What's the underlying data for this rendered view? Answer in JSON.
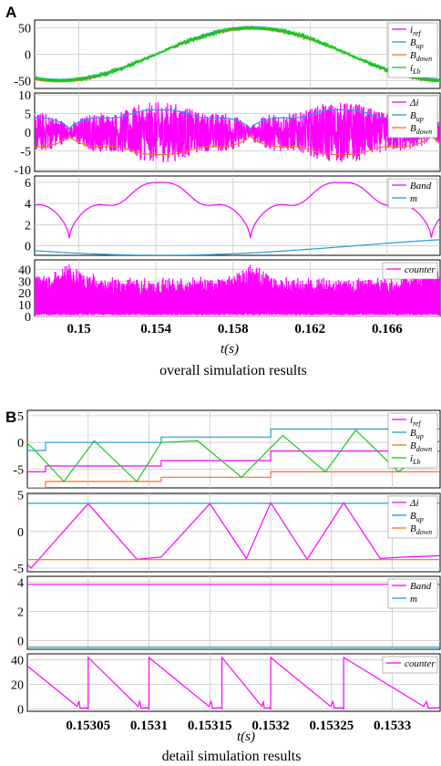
{
  "figure": {
    "panel_labels": [
      "A",
      "B"
    ],
    "captions": [
      "overall simulation results",
      "detail simulation results"
    ],
    "xlabel": "t(s)"
  },
  "colors": {
    "magenta": "#ff00ff",
    "cyan": "#1e9fd8",
    "orange": "#ff6a2a",
    "green": "#19c81e"
  },
  "chart_data": [
    {
      "panel": "A",
      "type": "line",
      "x_ticks": [
        0.15,
        0.154,
        0.158,
        0.162,
        0.166
      ],
      "x_tick_labels": [
        "0.15",
        "0.154",
        "0.158",
        "0.162",
        "0.166"
      ],
      "xlim": [
        0.1477,
        0.1688
      ],
      "xlabel": "t(s)",
      "subplots": [
        {
          "ylim": [
            -65,
            65
          ],
          "y_ticks": [
            -50,
            0,
            50
          ],
          "legend": [
            {
              "label": "i",
              "sub": "ref",
              "color": "#ff00ff"
            },
            {
              "label": "B",
              "sub": "up",
              "color": "#1e9fd8"
            },
            {
              "label": "B",
              "sub": "down",
              "color": "#ff6a2a"
            },
            {
              "label": "i",
              "sub": "Lb",
              "color": "#19c81e"
            }
          ],
          "series": [
            {
              "name": "iref",
              "kind": "sine",
              "amplitude": 50,
              "period": 0.02,
              "peak_at": 0.159,
              "offset": 0,
              "color": "#ff00ff"
            },
            {
              "name": "Bup",
              "kind": "sine",
              "amplitude": 50,
              "period": 0.02,
              "peak_at": 0.159,
              "offset": 4,
              "color": "#1e9fd8"
            },
            {
              "name": "Bdown",
              "kind": "sine",
              "amplitude": 50,
              "period": 0.02,
              "peak_at": 0.159,
              "offset": -4,
              "color": "#ff6a2a"
            },
            {
              "name": "iLb",
              "kind": "sine_ripple",
              "amplitude": 50,
              "period": 0.02,
              "peak_at": 0.159,
              "ripple": 6,
              "color": "#19c81e"
            }
          ]
        },
        {
          "ylim": [
            -10.5,
            10.5
          ],
          "y_ticks": [
            -10,
            -5,
            0,
            5,
            10
          ],
          "legend": [
            {
              "label": "Δi",
              "sub": "",
              "color": "#ff00ff"
            },
            {
              "label": "B",
              "sub": "up",
              "color": "#1e9fd8"
            },
            {
              "label": "B",
              "sub": "down",
              "color": "#ff6a2a"
            }
          ],
          "series": [
            {
              "name": "Δi",
              "kind": "band_fill",
              "color": "#ff00ff"
            },
            {
              "name": "Bup",
              "kind": "band",
              "sign": 1,
              "color": "#1e9fd8"
            },
            {
              "name": "Bdown",
              "kind": "band",
              "sign": -1,
              "color": "#ff6a2a"
            }
          ]
        },
        {
          "ylim": [
            -0.9,
            6.6
          ],
          "y_ticks": [
            0,
            2,
            4,
            6
          ],
          "legend": [
            {
              "label": "Band",
              "sub": "",
              "color": "#ff00ff"
            },
            {
              "label": "m",
              "sub": "",
              "color": "#1e9fd8"
            }
          ],
          "series": [
            {
              "name": "Band",
              "kind": "band",
              "sign": 1,
              "color": "#ff00ff"
            },
            {
              "name": "m",
              "kind": "slow_sine",
              "amplitude": 0.9,
              "period": 0.04,
              "trough_at": 0.1543,
              "color": "#1e9fd8"
            }
          ]
        },
        {
          "ylim": [
            0,
            48
          ],
          "y_ticks": [
            0,
            10,
            20,
            30,
            40
          ],
          "legend": [
            {
              "label": "counter",
              "sub": "",
              "color": "#ff00ff"
            }
          ],
          "series": [
            {
              "name": "counter",
              "kind": "counter_fill",
              "max": 42,
              "color": "#ff00ff"
            }
          ]
        }
      ]
    },
    {
      "panel": "B",
      "type": "line",
      "x_ticks": [
        0.15305,
        0.1531,
        0.15315,
        0.1532,
        0.15325,
        0.1533
      ],
      "x_tick_labels": [
        "0.15305",
        "0.1531",
        "0.15315",
        "0.1532",
        "0.15325",
        "0.1533"
      ],
      "xlim": [
        0.153,
        0.15334
      ],
      "xlabel": "t(s)",
      "subplots": [
        {
          "ylim": [
            -8.5,
            6
          ],
          "y_ticks": [
            -5,
            0,
            5
          ],
          "legend": [
            {
              "label": "i",
              "sub": "ref",
              "color": "#ff00ff"
            },
            {
              "label": "B",
              "sub": "up",
              "color": "#1e9fd8"
            },
            {
              "label": "B",
              "sub": "down",
              "color": "#ff6a2a"
            },
            {
              "label": "i",
              "sub": "Lb",
              "color": "#19c81e"
            }
          ],
          "series": [
            {
              "name": "iref",
              "kind": "steps",
              "x": [
                0.153,
                0.153015,
                0.15311,
                0.1532,
                0.15334
              ],
              "y": [
                -5.5,
                -4.4,
                -3.4,
                -1.6,
                -1.6
              ],
              "color": "#ff00ff"
            },
            {
              "name": "Bup",
              "kind": "steps",
              "x": [
                0.153,
                0.153015,
                0.15311,
                0.1532,
                0.15334
              ],
              "y": [
                -1.5,
                0,
                1,
                2.5,
                2.5
              ],
              "color": "#1e9fd8"
            },
            {
              "name": "Bdown",
              "kind": "steps",
              "x": [
                0.153,
                0.153015,
                0.15311,
                0.1532,
                0.15334
              ],
              "y": [
                -8.5,
                -7.3,
                -6.5,
                -5.5,
                -5.5
              ],
              "color": "#ff6a2a"
            },
            {
              "name": "iLb",
              "kind": "polyline",
              "x": [
                0.153,
                0.153005,
                0.15303,
                0.153055,
                0.15309,
                0.15311,
                0.15314,
                0.153176,
                0.15321,
                0.153245,
                0.15327,
                0.153305,
                0.15334
              ],
              "y": [
                -0.2,
                -1.2,
                -7.3,
                0.3,
                -7.3,
                0,
                0.3,
                -6.5,
                1.3,
                -5.5,
                2.3,
                -5.5,
                0.5
              ],
              "color": "#19c81e"
            }
          ]
        },
        {
          "ylim": [
            -5.5,
            5.2
          ],
          "y_ticks": [
            -5,
            0,
            5
          ],
          "legend": [
            {
              "label": "Δi",
              "sub": "",
              "color": "#ff00ff"
            },
            {
              "label": "B",
              "sub": "up",
              "color": "#1e9fd8"
            },
            {
              "label": "B",
              "sub": "down",
              "color": "#ff6a2a"
            }
          ],
          "series": [
            {
              "name": "Δi",
              "kind": "polyline",
              "x": [
                0.153,
                0.153003,
                0.15305,
                0.15309,
                0.15311,
                0.15315,
                0.15318,
                0.1532,
                0.15323,
                0.15326,
                0.15329,
                0.15331,
                0.15334
              ],
              "y": [
                -4.5,
                -5,
                3.8,
                -3.8,
                -3.5,
                3.8,
                -3.7,
                3.9,
                -3.8,
                3.9,
                -3.7,
                -3.5,
                -3.3
              ],
              "color": "#ff00ff"
            },
            {
              "name": "Bup",
              "kind": "steps",
              "x": [
                0.153,
                0.15334
              ],
              "y": [
                3.85,
                3.85
              ],
              "color": "#1e9fd8"
            },
            {
              "name": "Bdown",
              "kind": "steps",
              "x": [
                0.153,
                0.15334
              ],
              "y": [
                -3.85,
                -3.85
              ],
              "color": "#ff6a2a"
            }
          ]
        },
        {
          "ylim": [
            -0.6,
            4.4
          ],
          "y_ticks": [
            0,
            2,
            4
          ],
          "legend": [
            {
              "label": "Band",
              "sub": "",
              "color": "#ff00ff"
            },
            {
              "label": "m",
              "sub": "",
              "color": "#1e9fd8"
            }
          ],
          "series": [
            {
              "name": "Band",
              "kind": "steps",
              "x": [
                0.153,
                0.15334
              ],
              "y": [
                3.85,
                3.85
              ],
              "color": "#ff00ff"
            },
            {
              "name": "m",
              "kind": "steps",
              "x": [
                0.153,
                0.15334
              ],
              "y": [
                -0.45,
                -0.45
              ],
              "color": "#1e9fd8"
            }
          ]
        },
        {
          "ylim": [
            -2,
            45
          ],
          "y_ticks": [
            0,
            20,
            40
          ],
          "legend": [
            {
              "label": "counter",
              "sub": "",
              "color": "#ff00ff"
            }
          ],
          "series": [
            {
              "name": "counter",
              "kind": "sawtooth",
              "resets": [
                0.153,
                0.15305,
                0.1531,
                0.15316,
                0.1532,
                0.15326,
                0.15334
              ],
              "max": 42,
              "start": 35,
              "color": "#ff00ff"
            }
          ]
        }
      ]
    }
  ]
}
